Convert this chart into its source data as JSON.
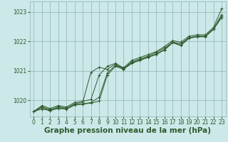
{
  "bg_color": "#cce8e8",
  "grid_color": "#99bbbb",
  "line_color": "#2d5a2d",
  "xlabel": "Graphe pression niveau de la mer (hPa)",
  "xlabel_fontsize": 7.5,
  "ylim": [
    1019.45,
    1023.35
  ],
  "xlim": [
    -0.5,
    23.5
  ],
  "yticks": [
    1020,
    1021,
    1022,
    1023
  ],
  "xticks": [
    0,
    1,
    2,
    3,
    4,
    5,
    6,
    7,
    8,
    9,
    10,
    11,
    12,
    13,
    14,
    15,
    16,
    17,
    18,
    19,
    20,
    21,
    22,
    23
  ],
  "series": [
    [
      1019.62,
      1019.82,
      1019.72,
      1019.82,
      1019.77,
      1019.92,
      1019.97,
      1020.02,
      1020.85,
      1021.15,
      1021.25,
      1021.1,
      1021.35,
      1021.45,
      1021.55,
      1021.65,
      1021.82,
      1022.02,
      1021.97,
      1022.17,
      1022.22,
      1022.22,
      1022.47,
      1023.1
    ],
    [
      1019.62,
      1019.78,
      1019.68,
      1019.78,
      1019.73,
      1019.88,
      1019.93,
      1020.95,
      1021.12,
      1021.05,
      1021.22,
      1021.07,
      1021.3,
      1021.4,
      1021.5,
      1021.62,
      1021.77,
      1021.97,
      1021.92,
      1022.12,
      1022.17,
      1022.17,
      1022.42,
      1022.9
    ],
    [
      1019.62,
      1019.75,
      1019.65,
      1019.75,
      1019.7,
      1019.85,
      1019.88,
      1019.92,
      1020.1,
      1020.92,
      1021.18,
      1021.07,
      1021.27,
      1021.37,
      1021.47,
      1021.57,
      1021.72,
      1021.97,
      1021.87,
      1022.12,
      1022.17,
      1022.17,
      1022.42,
      1022.85
    ],
    [
      1019.62,
      1019.7,
      1019.65,
      1019.72,
      1019.7,
      1019.83,
      1019.87,
      1019.9,
      1019.97,
      1020.85,
      1021.15,
      1021.05,
      1021.25,
      1021.35,
      1021.45,
      1021.55,
      1021.7,
      1021.95,
      1021.85,
      1022.1,
      1022.15,
      1022.15,
      1022.4,
      1022.8
    ]
  ]
}
